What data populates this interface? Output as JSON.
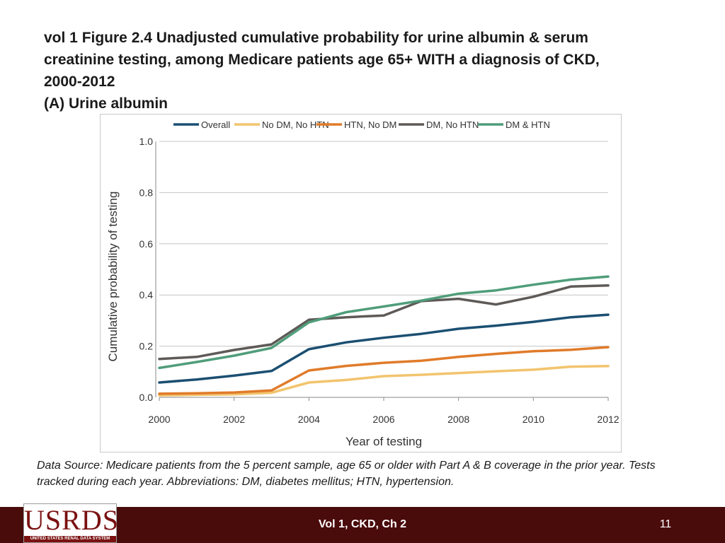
{
  "slide": {
    "title_lines": [
      "vol 1 Figure 2.4 Unadjusted cumulative probability for urine albumin & serum",
      "creatinine testing, among Medicare patients age 65+ WITH a diagnosis of CKD,",
      "2000-2012",
      "(A) Urine albumin"
    ],
    "source_note": "Data Source: Medicare patients from the 5 percent sample, age 65 or older with Part A & B coverage in the prior year. Tests tracked during each year. Abbreviations: DM, diabetes mellitus; HTN, hypertension."
  },
  "footer": {
    "logo_text": "USRDS",
    "logo_subtext": "UNITED STATES RENAL DATA SYSTEM",
    "center_text": "Vol 1, CKD, Ch 2",
    "page_number": "11",
    "bar_color": "#4a0b0b",
    "logo_color": "#7a1010"
  },
  "chart_data": {
    "type": "line",
    "title": "",
    "xlabel": "Year of testing",
    "ylabel": "Cumulative probability of testing",
    "x": [
      2000,
      2001,
      2002,
      2003,
      2004,
      2005,
      2006,
      2007,
      2008,
      2009,
      2010,
      2011,
      2012
    ],
    "xticks": [
      2000,
      2002,
      2004,
      2006,
      2008,
      2010,
      2012
    ],
    "xtick_labels": [
      "2000",
      "2002",
      "2004",
      "2006",
      "2008",
      "2010",
      "2012"
    ],
    "yticks": [
      0.0,
      0.2,
      0.4,
      0.6,
      0.8,
      1.0
    ],
    "ytick_labels": [
      "0.0",
      "0.2",
      "0.4",
      "0.6",
      "0.8",
      "1.0"
    ],
    "xlim": [
      2000,
      2012
    ],
    "ylim": [
      0,
      1.0
    ],
    "grid": "horizontal",
    "legend_position": "top",
    "series": [
      {
        "name": "Overall",
        "color": "#1b4f72",
        "values": [
          0.058,
          0.07,
          0.085,
          0.103,
          0.188,
          0.215,
          0.233,
          0.248,
          0.268,
          0.28,
          0.295,
          0.313,
          0.323
        ]
      },
      {
        "name": "No DM, No HTN",
        "color": "#f2c46e",
        "values": [
          0.008,
          0.01,
          0.012,
          0.018,
          0.058,
          0.068,
          0.083,
          0.088,
          0.095,
          0.102,
          0.108,
          0.12,
          0.122
        ]
      },
      {
        "name": "HTN, No DM",
        "color": "#e07b2a",
        "values": [
          0.014,
          0.016,
          0.019,
          0.027,
          0.105,
          0.123,
          0.135,
          0.143,
          0.158,
          0.17,
          0.18,
          0.186,
          0.196
        ]
      },
      {
        "name": "DM, No HTN",
        "color": "#5e5a58",
        "values": [
          0.15,
          0.158,
          0.185,
          0.207,
          0.303,
          0.313,
          0.32,
          0.376,
          0.385,
          0.363,
          0.393,
          0.433,
          0.437
        ]
      },
      {
        "name": "DM & HTN",
        "color": "#4f9d7a",
        "values": [
          0.115,
          0.138,
          0.163,
          0.193,
          0.293,
          0.333,
          0.355,
          0.378,
          0.405,
          0.418,
          0.44,
          0.46,
          0.472
        ]
      }
    ]
  }
}
